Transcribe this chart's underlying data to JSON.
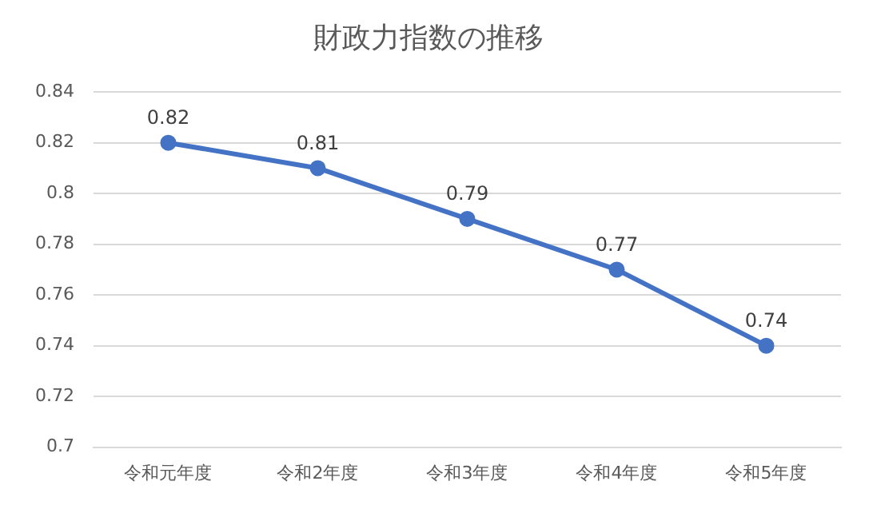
{
  "chart_data": {
    "type": "line",
    "title": "財政力指数の推移",
    "categories": [
      "令和元年度",
      "令和2年度",
      "令和3年度",
      "令和4年度",
      "令和5年度"
    ],
    "series": [
      {
        "color": "#4472c4",
        "values": [
          0.82,
          0.81,
          0.79,
          0.77,
          0.74
        ]
      }
    ],
    "ylim": [
      0.7,
      0.84
    ],
    "yticks": [
      0.7,
      0.72,
      0.74,
      0.76,
      0.78,
      0.8,
      0.82,
      0.84
    ],
    "grid": "y",
    "marker": "circle",
    "data_labels": true
  }
}
